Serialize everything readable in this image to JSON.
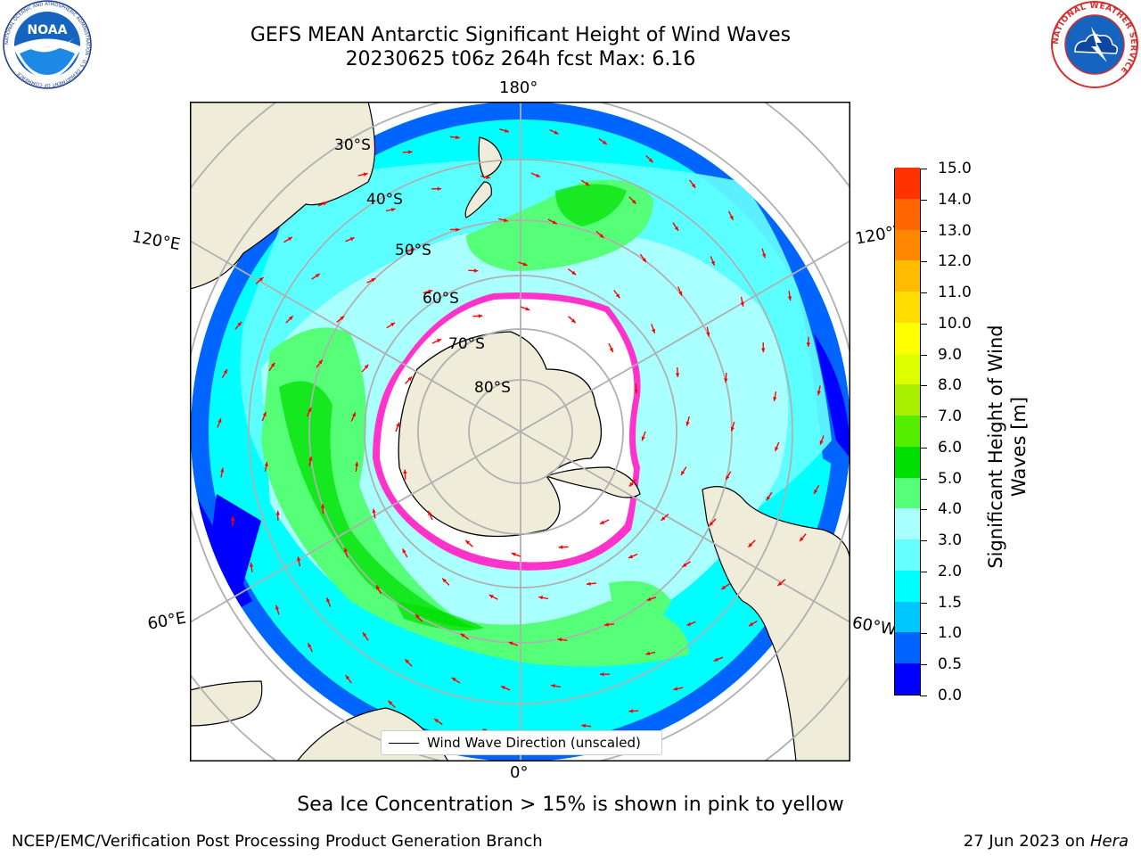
{
  "header": {
    "title_line1": "GEFS MEAN Antarctic Significant Height of Wind Waves",
    "title_line2": "20230625 t06z 264h fcst   Max: 6.16"
  },
  "logos": {
    "noaa_text": "NOAA",
    "noaa_ring_text": "NATIONAL OCEANIC AND ATMOSPHERIC ADMINISTRATION · U.S. DEPARTMENT OF COMMERCE",
    "nws_ring_text": "NATIONAL WEATHER SERVICE"
  },
  "map": {
    "projection": "south-polar-stereographic",
    "longitude_labels": {
      "top": "180°",
      "bottom": "0°",
      "upper_left": "120°E",
      "upper_right": "120°W",
      "lower_left": "60°E",
      "lower_right": "60°W"
    },
    "latitude_labels": [
      "30°S",
      "40°S",
      "50°S",
      "60°S",
      "70°S",
      "80°S"
    ],
    "colors": {
      "land": "#efedd9",
      "sea_ice_interior": "#ffffff",
      "sea_ice_edge_pink": "#ff33cc",
      "arrow": "#ff0000",
      "graticule": "#b0b0b0"
    }
  },
  "colorbar": {
    "label": "Significant Height of Wind Waves [m]",
    "ticks": [
      "0.0",
      "0.5",
      "1.0",
      "1.5",
      "2.0",
      "3.0",
      "4.0",
      "5.0",
      "6.0",
      "7.0",
      "8.0",
      "9.0",
      "10.0",
      "11.0",
      "12.0",
      "13.0",
      "14.0",
      "15.0"
    ],
    "colors": [
      "#0000ff",
      "#0064ff",
      "#00c8ff",
      "#00ffff",
      "#66ffff",
      "#aaffff",
      "#55ff77",
      "#00e000",
      "#55ee00",
      "#aaee00",
      "#ddff00",
      "#ffff00",
      "#ffdd00",
      "#ffbb00",
      "#ff8800",
      "#ff6600",
      "#ff3300",
      "#ff0000"
    ]
  },
  "legend": {
    "label": "Wind Wave Direction (unscaled)"
  },
  "footer": {
    "note": "Sea Ice Concentration > 15% is shown in pink to yellow",
    "credit_left": "NCEP/EMC/Verification Post Processing Product Generation Branch",
    "date": "27 Jun 2023 on ",
    "host": "Hera"
  }
}
